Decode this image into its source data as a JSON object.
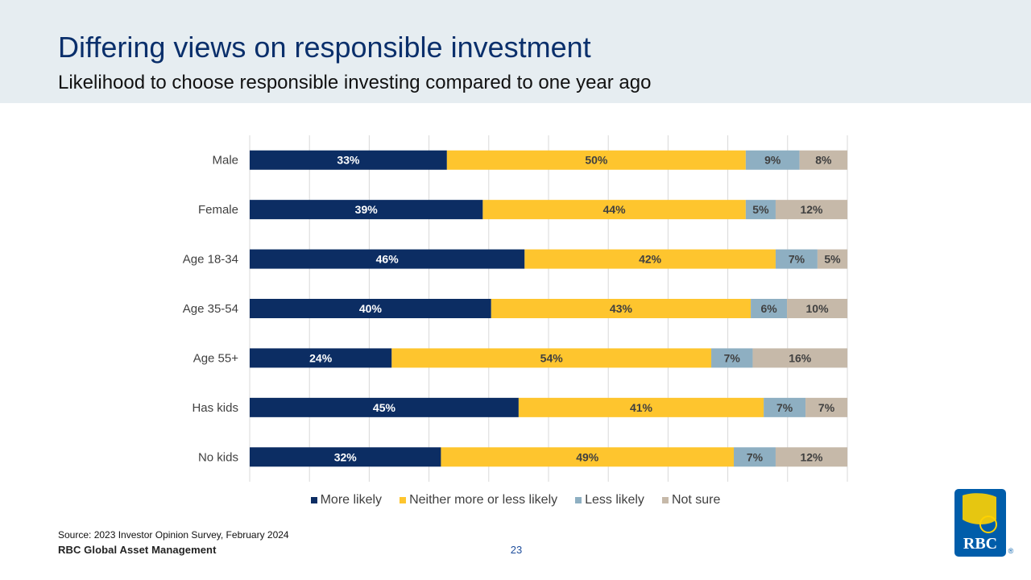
{
  "header": {
    "title": "Differing views on responsible investment",
    "subtitle": "Likelihood to choose responsible investing compared to one year ago"
  },
  "chart_data": {
    "type": "bar",
    "orientation": "horizontal",
    "stacked": "100%",
    "categories": [
      "Male",
      "Female",
      "Age 18-34",
      "Age 35-54",
      "Age 55+",
      "Has kids",
      "No kids"
    ],
    "series": [
      {
        "name": "More likely",
        "color": "#0c2d63",
        "values": [
          33,
          39,
          46,
          40,
          24,
          45,
          32
        ]
      },
      {
        "name": "Neither more or less likely",
        "color": "#fec52e",
        "values": [
          50,
          44,
          42,
          43,
          54,
          41,
          49
        ]
      },
      {
        "name": "Less likely",
        "color": "#8eafc2",
        "values": [
          9,
          5,
          7,
          6,
          7,
          7,
          7
        ]
      },
      {
        "name": "Not sure",
        "color": "#c6b9a9",
        "values": [
          8,
          12,
          5,
          10,
          16,
          7,
          12
        ]
      }
    ],
    "data_label_format": "{v}%",
    "xlim": [
      0,
      100
    ],
    "grid": true,
    "legend": "bottom"
  },
  "footer": {
    "source": "Source: 2023 Investor Opinion Survey, February 2024",
    "brand": "RBC Global Asset Management",
    "page_number": "23"
  },
  "logo": {
    "text": "RBC",
    "registered": "®",
    "colors": {
      "blue": "#005daa",
      "yellow": "#ffd200"
    }
  }
}
